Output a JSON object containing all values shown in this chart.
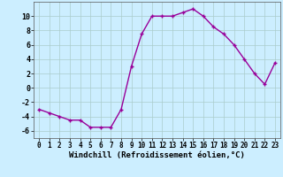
{
  "x": [
    0,
    1,
    2,
    3,
    4,
    5,
    6,
    7,
    8,
    9,
    10,
    11,
    12,
    13,
    14,
    15,
    16,
    17,
    18,
    19,
    20,
    21,
    22,
    23
  ],
  "y": [
    -3,
    -3.5,
    -4,
    -4.5,
    -4.5,
    -5.5,
    -5.5,
    -5.5,
    -3,
    3,
    7.5,
    10,
    10,
    10,
    10.5,
    11,
    10,
    8.5,
    7.5,
    6,
    4,
    2,
    0.5,
    3.5
  ],
  "line_color": "#990099",
  "marker": "+",
  "bg_color": "#cceeff",
  "grid_color": "#aacccc",
  "xlabel": "Windchill (Refroidissement éolien,°C)",
  "xlim": [
    -0.5,
    23.5
  ],
  "ylim": [
    -7,
    12
  ],
  "yticks": [
    -6,
    -4,
    -2,
    0,
    2,
    4,
    6,
    8,
    10
  ],
  "xticks": [
    0,
    1,
    2,
    3,
    4,
    5,
    6,
    7,
    8,
    9,
    10,
    11,
    12,
    13,
    14,
    15,
    16,
    17,
    18,
    19,
    20,
    21,
    22,
    23
  ],
  "figsize": [
    3.2,
    2.0
  ],
  "dpi": 100
}
